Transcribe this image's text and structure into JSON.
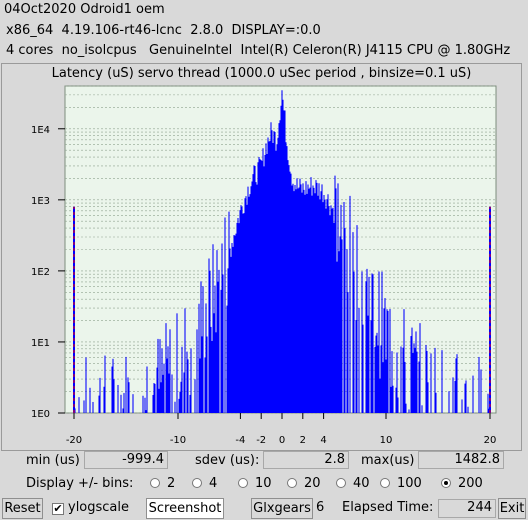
{
  "header": {
    "line1": "04Oct2020 Odroid1 oem",
    "line2": "x86_64  4.19.106-rt46-lcnc  2.8.0  DISPLAY=:0.0",
    "line3": "4 cores  no_isolcpus   GenuineIntel  Intel(R) Celeron(R) J4115 CPU @ 1.80GHz"
  },
  "plot": {
    "title": "Latency (uS) servo thread (1000.0 uSec period , binsize=0.1 uS)",
    "y_tick_labels": [
      "1E0",
      "1E1",
      "1E2",
      "1E3",
      "1E4"
    ],
    "x_tick_labels": [
      "-20",
      "-10",
      "-4",
      "-2",
      "0",
      "2",
      "4",
      "10",
      "20"
    ],
    "colors": {
      "bars": "#0000ff",
      "edge_markers": "#ff0000",
      "plot_bg": "#ebf5eb",
      "grid": "#8fa38f"
    }
  },
  "chart_data": {
    "type": "bar",
    "title": "Latency (uS) servo thread (1000.0 uSec period , binsize=0.1 uS)",
    "xlabel": "",
    "ylabel": "",
    "yscale": "log",
    "ylim": [
      1,
      40000
    ],
    "x_ticks": [
      -20,
      -10,
      -4,
      -2,
      0,
      2,
      4,
      10,
      20
    ],
    "x_range": [
      -20,
      20
    ],
    "envelope": {
      "x": [
        -20,
        -16,
        -12,
        -10,
        -8,
        -6,
        -5,
        -4,
        -3,
        -2,
        -1.5,
        -1,
        -0.5,
        0,
        0.5,
        1,
        1.5,
        2,
        3,
        4,
        5,
        6,
        8,
        10,
        12,
        16,
        20
      ],
      "count": [
        1,
        1,
        2,
        4,
        12,
        60,
        200,
        700,
        1800,
        3000,
        6000,
        9000,
        7000,
        35000,
        6000,
        2000,
        1500,
        1400,
        1600,
        1300,
        700,
        250,
        50,
        10,
        4,
        1,
        1
      ]
    },
    "edge_bins": [
      {
        "x": -20,
        "count": 800,
        "label": "underflow"
      },
      {
        "x": 20,
        "count": 800,
        "label": "overflow"
      }
    ]
  },
  "stats": {
    "min_label": "min (us)",
    "min_value": "-999.4",
    "sdev_label": "sdev (us):",
    "sdev_value": "2.8",
    "max_label": "max(us)",
    "max_value": "1482.8"
  },
  "bins": {
    "label": "Display +/- bins:",
    "options": [
      "2",
      "4",
      "10",
      "20",
      "40",
      "100",
      "200"
    ],
    "selected": "200"
  },
  "toolbar": {
    "reset_label": "Reset",
    "ylogscale_label": "ylogscale",
    "ylogscale_checked": true,
    "screenshot_label": "Screenshot",
    "glxgears_label": "Glxgears",
    "glxgears_count": "6",
    "elapsed_label": "Elapsed Time:",
    "elapsed_value": "244",
    "exit_label": "Exit"
  }
}
